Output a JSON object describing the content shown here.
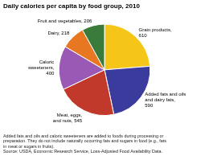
{
  "chart_data": {
    "type": "pie",
    "title": "Daily calories per capita by food group, 2010",
    "categories": [
      "Grain products,\n610",
      "Added fats and oils\nand dairy fats,\n590",
      "Meat, eggs,\nand nuts, 545",
      "Caloric\nsweeteners,\n400",
      "Dairy, 218",
      "Fruit and vegetables, 206"
    ],
    "values": [
      610,
      590,
      545,
      400,
      218,
      206
    ],
    "colors": [
      "#F5C518",
      "#3B3B9E",
      "#C0392B",
      "#9B59B6",
      "#E87722",
      "#3A7A3A"
    ],
    "footnotes": [
      "Added fats and oils and caloric sweeteners are added to foods during processing or",
      "preparation. They do not include naturally occurring fats and sugars in food (e.g., fats",
      "in meat or sugars in fruits).",
      "Source: USDA, Economic Research Service, Loss-Adjusted Food Availability Data."
    ]
  }
}
